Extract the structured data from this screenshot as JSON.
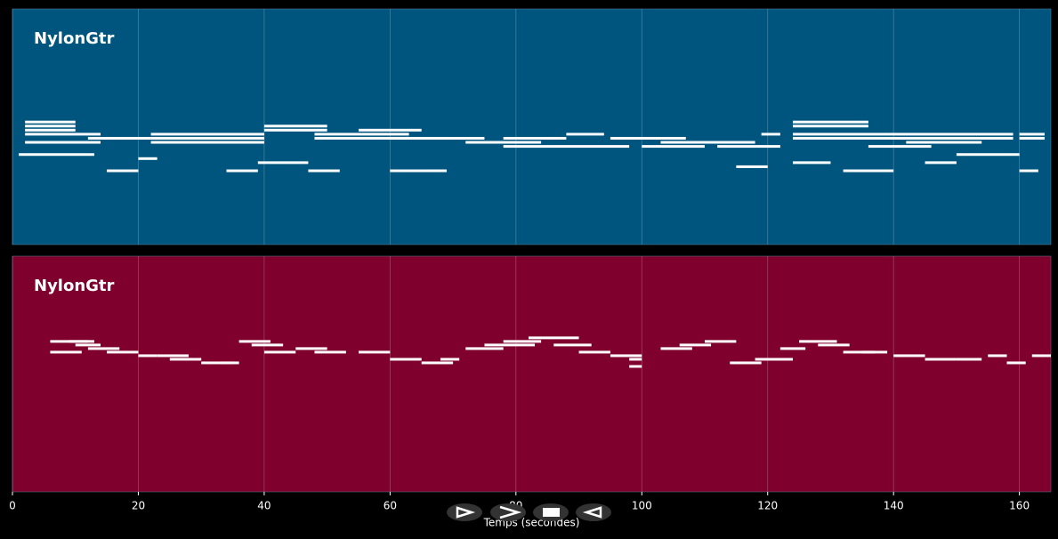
{
  "chart_data": [
    {
      "type": "piano-roll",
      "title": "NylonGtr",
      "color": "#00557f",
      "grid": true,
      "xlim": [
        0,
        165
      ],
      "xticks": [
        0,
        20,
        40,
        60,
        80,
        100,
        120,
        140,
        160
      ],
      "ylim": [
        31,
        89
      ],
      "x": [
        2,
        2,
        2,
        2,
        2,
        1,
        15,
        20,
        12,
        22,
        22,
        22,
        34,
        39,
        40,
        40,
        48,
        48,
        47,
        55,
        60,
        60,
        66,
        72,
        78,
        78,
        88,
        95,
        100,
        103,
        112,
        115,
        119,
        124,
        124,
        124,
        124,
        124,
        132,
        136,
        142,
        145,
        150,
        160,
        160,
        160
      ],
      "durations": [
        8,
        8,
        8,
        12,
        12,
        12,
        5,
        3,
        10,
        18,
        18,
        18,
        5,
        8,
        10,
        10,
        15,
        15,
        5,
        10,
        8,
        15,
        3,
        12,
        20,
        10,
        6,
        12,
        10,
        15,
        10,
        5,
        3,
        12,
        12,
        35,
        35,
        6,
        8,
        10,
        12,
        5,
        10,
        4,
        4,
        3
      ],
      "values": [
        61,
        60,
        59,
        58,
        56,
        53,
        49,
        52,
        57,
        57,
        56,
        58,
        49,
        51,
        59,
        60,
        58,
        57,
        49,
        59,
        49,
        57,
        49,
        56,
        55,
        57,
        58,
        57,
        55,
        56,
        55,
        50,
        58,
        61,
        60,
        58,
        57,
        51,
        49,
        55,
        56,
        51,
        53,
        58,
        57,
        49
      ]
    },
    {
      "type": "piano-roll",
      "title": "NylonGtr",
      "color": "#7f002c",
      "grid": true,
      "xlim": [
        0,
        165
      ],
      "xticks": [
        0,
        20,
        40,
        60,
        80,
        100,
        120,
        140,
        160
      ],
      "ylim": [
        27,
        93
      ],
      "xlabel": "Temps (secondes)",
      "x": [
        6,
        6,
        9,
        10,
        12,
        15,
        20,
        23,
        25,
        30,
        33,
        36,
        38,
        40,
        45,
        48,
        55,
        60,
        65,
        68,
        72,
        75,
        78,
        82,
        86,
        90,
        95,
        98,
        98,
        103,
        106,
        110,
        114,
        118,
        122,
        125,
        128,
        132,
        135,
        140,
        145,
        150,
        155,
        158,
        162
      ],
      "durations": [
        6,
        5,
        4,
        4,
        5,
        5,
        3,
        5,
        5,
        5,
        3,
        5,
        5,
        5,
        5,
        5,
        5,
        5,
        5,
        3,
        6,
        8,
        6,
        8,
        6,
        5,
        5,
        2,
        2,
        5,
        5,
        5,
        5,
        6,
        4,
        6,
        5,
        5,
        4,
        5,
        5,
        4,
        3,
        3,
        3
      ],
      "values": [
        69,
        66,
        69,
        68,
        67,
        66,
        65,
        65,
        64,
        63,
        63,
        69,
        68,
        66,
        67,
        66,
        66,
        64,
        63,
        64,
        67,
        68,
        69,
        70,
        68,
        66,
        65,
        64,
        62,
        67,
        68,
        69,
        63,
        64,
        67,
        69,
        68,
        66,
        66,
        65,
        64,
        64,
        65,
        63,
        65
      ]
    }
  ]
}
